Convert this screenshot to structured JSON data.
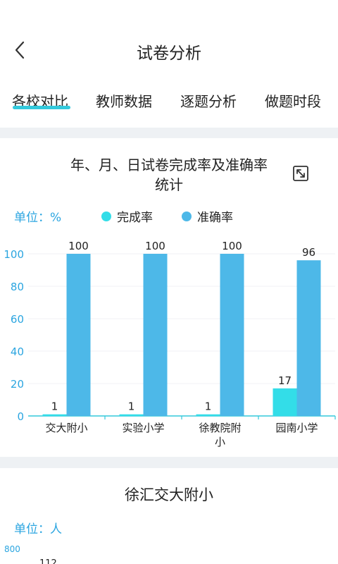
{
  "header": {
    "title": "试卷分析",
    "back_icon": "chevron-left-icon"
  },
  "tabs": [
    {
      "label": "各校对比",
      "active": true
    },
    {
      "label": "教师数据"
    },
    {
      "label": "逐题分析"
    },
    {
      "label": "做题时段"
    }
  ],
  "card1": {
    "title_line1": "年、月、日试卷完成率及准确率",
    "title_line2": "统计",
    "unit": "单位：%",
    "expand_icon": "expand-icon"
  },
  "chart_data": {
    "type": "bar",
    "categories": [
      "交大附小",
      "实验小学",
      "徐教院附小",
      "园南小学"
    ],
    "category_lines": [
      [
        "交大附小"
      ],
      [
        "实验小学"
      ],
      [
        "徐教院附",
        "小"
      ],
      [
        "园南小学"
      ]
    ],
    "series": [
      {
        "name": "完成率",
        "values": [
          1,
          1,
          1,
          17
        ],
        "color": "#33dde8"
      },
      {
        "name": "准确率",
        "values": [
          100,
          100,
          100,
          96
        ],
        "color": "#4db8e8"
      }
    ],
    "ylim": [
      0,
      100
    ],
    "yticks": [
      0,
      20,
      40,
      60,
      80,
      100
    ],
    "grid": true,
    "legend": "top"
  },
  "card2": {
    "title": "徐汇交大附小",
    "unit": "单位：人",
    "y_top_tick": "800",
    "peek_label": "112"
  },
  "colors": {
    "accent": "#33c9dc",
    "unit_text": "#2ba5e0",
    "divider": "#eef1f4"
  }
}
